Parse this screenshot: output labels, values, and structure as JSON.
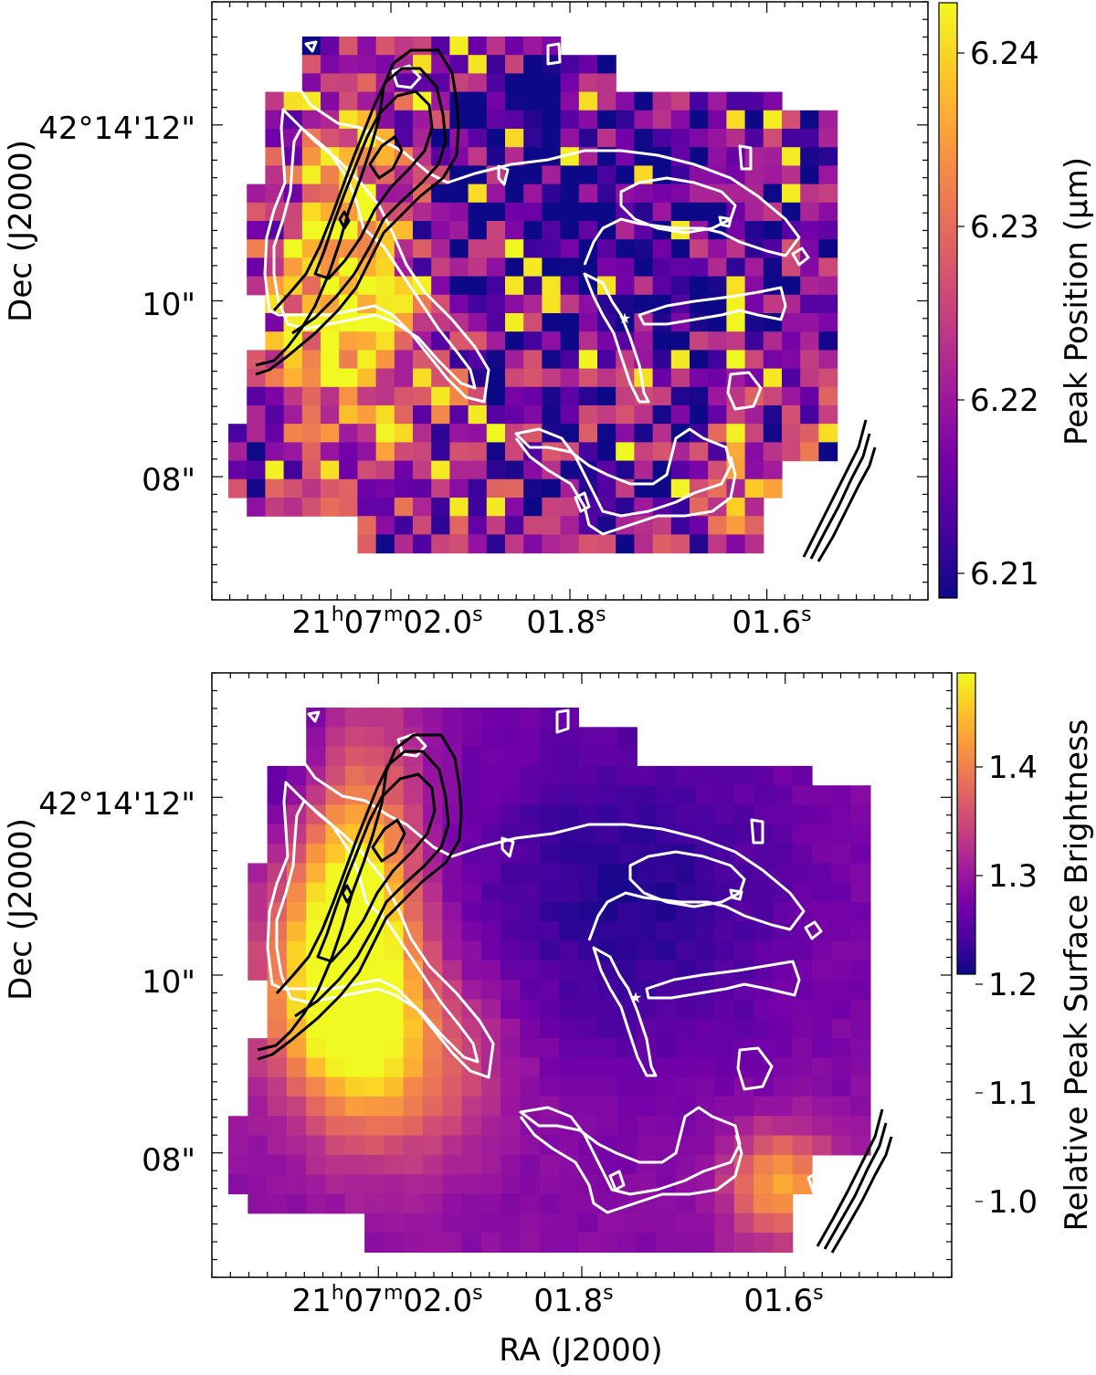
{
  "figure": {
    "shared_xlabel": "RA (J2000)"
  },
  "colors": {
    "plasma": [
      "#0d0887",
      "#46039f",
      "#7201a8",
      "#9c179e",
      "#bd3786",
      "#d8576b",
      "#ed7953",
      "#fb9f3a",
      "#fdca26",
      "#f0f921"
    ],
    "contour_white": "#ffffff",
    "contour_black": "#000000"
  },
  "chart_data": [
    {
      "type": "heatmap",
      "panel": "top",
      "ylabel": "Dec (J2000)",
      "xlabel": "",
      "xtick_labels": [
        {
          "h": "21",
          "m": "07",
          "s": "02.0"
        },
        {
          "h": "",
          "m": "",
          "s": "01.8"
        },
        {
          "h": "",
          "m": "",
          "s": "01.6"
        }
      ],
      "ytick_labels": [
        "42°14'12\"",
        "10\"",
        "08\""
      ],
      "colorbar": {
        "label": "Peak Position (µm)",
        "ticks": [
          "6.24",
          "6.23",
          "6.22",
          "6.21"
        ],
        "range": [
          6.208,
          6.243
        ]
      },
      "grid": false,
      "star_marker": true
    },
    {
      "type": "heatmap",
      "panel": "bottom",
      "ylabel": "Dec (J2000)",
      "xlabel": "RA (J2000)",
      "xtick_labels": [
        {
          "h": "21",
          "m": "07",
          "s": "02.0"
        },
        {
          "h": "",
          "m": "",
          "s": "01.8"
        },
        {
          "h": "",
          "m": "",
          "s": "01.6"
        }
      ],
      "ytick_labels": [
        "42°14'12\"",
        "10\"",
        "08\""
      ],
      "colorbar": {
        "label": "Relative Peak Surface Brightness",
        "ticks": [
          "1.4",
          "1.3",
          "1.2",
          "1.1",
          "1.0"
        ],
        "range": [
          0.93,
          1.49
        ]
      },
      "grid": false,
      "star_marker": true
    }
  ]
}
